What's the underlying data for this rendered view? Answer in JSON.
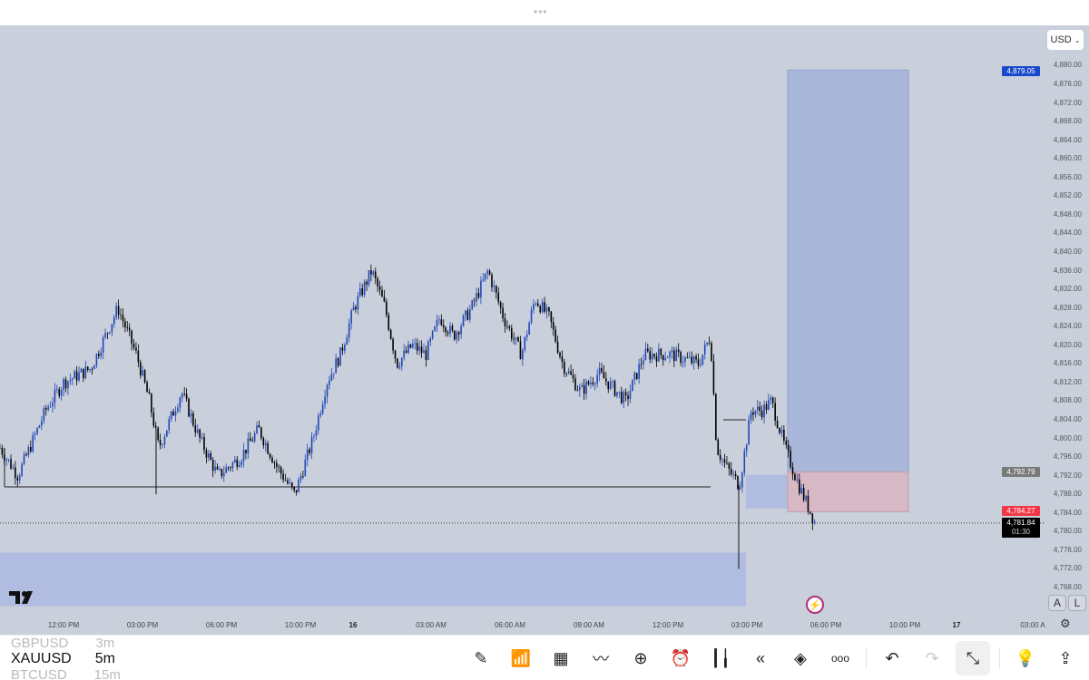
{
  "top": {
    "handle": "•••",
    "currency": "USD"
  },
  "symbols": [
    {
      "name": "GBPUSD",
      "interval": "3m"
    },
    {
      "name": "XAUUSD",
      "interval": "5m"
    },
    {
      "name": "BTCUSD",
      "interval": "15m"
    }
  ],
  "price_axis": [
    "4,880.00",
    "4,876.00",
    "4,872.00",
    "4,868.00",
    "4,864.00",
    "4,860.00",
    "4,856.00",
    "4,852.00",
    "4,848.00",
    "4,844.00",
    "4,840.00",
    "4,836.00",
    "4,832.00",
    "4,828.00",
    "4,824.00",
    "4,820.00",
    "4,816.00",
    "4,812.00",
    "4,808.00",
    "4,804.00",
    "4,800.00",
    "4,796.00",
    "4,792.00",
    "4,788.00",
    "4,784.00",
    "4,780.00",
    "4,776.00",
    "4,772.00",
    "4,768.00"
  ],
  "time_axis": [
    {
      "label": "12:00 PM",
      "t": "15 12:00"
    },
    {
      "label": "03:00 PM",
      "t": "15 15:00"
    },
    {
      "label": "06:00 PM",
      "t": "15 18:00"
    },
    {
      "label": "10:00 PM",
      "t": "15 22:00"
    },
    {
      "label": "16",
      "t": "16 00:00",
      "bold": true
    },
    {
      "label": "03:00 AM",
      "t": "16 03:00"
    },
    {
      "label": "06:00 AM",
      "t": "16 06:00"
    },
    {
      "label": "09:00 AM",
      "t": "16 09:00"
    },
    {
      "label": "12:00 PM",
      "t": "16 12:00"
    },
    {
      "label": "03:00 PM",
      "t": "16 15:00"
    },
    {
      "label": "06:00 PM",
      "t": "16 18:00"
    },
    {
      "label": "10:00 PM",
      "t": "16 22:00"
    },
    {
      "label": "17",
      "t": "17 00:00",
      "bold": true
    },
    {
      "label": "03:00 A",
      "t": "17 03:00"
    }
  ],
  "tags": {
    "target": "4,879.05",
    "entry": "4,792.79",
    "stop": "4,784.27",
    "last": "4,781.84",
    "countdown": "01:30"
  },
  "colors": {
    "up": "#1f47b8",
    "down": "#000000",
    "target_tag": "#1848cc",
    "stop_tag": "#f23645",
    "entry_tag": "#7a7a7a",
    "profit_zone": "#a9b7da",
    "loss_zone": "#d7b9c6",
    "demand_zone": "#b0bde0"
  },
  "price_path": [
    [
      "15 09:35",
      4798
    ],
    [
      "15 10:16",
      4792
    ],
    [
      "15 11:19",
      4806
    ],
    [
      "15 12:00",
      4812
    ],
    [
      "15 13:02",
      4815
    ],
    [
      "15 14:04",
      4828
    ],
    [
      "15 14:46",
      4818
    ],
    [
      "15 15:16",
      4808
    ],
    [
      "15 15:37",
      4798
    ],
    [
      "15 16:29",
      4810
    ],
    [
      "15 17:10",
      4800
    ],
    [
      "15 17:52",
      4792
    ],
    [
      "15 18:58",
      4796
    ],
    [
      "15 19:53",
      4802
    ],
    [
      "15 20:48",
      4794
    ],
    [
      "15 21:43",
      4788
    ],
    [
      "15 22:29",
      4800
    ],
    [
      "15 23:00",
      4812
    ],
    [
      "15 23:31",
      4818
    ],
    [
      "16 00:02",
      4828
    ],
    [
      "16 00:43",
      4836
    ],
    [
      "16 01:14",
      4828
    ],
    [
      "16 01:41",
      4816
    ],
    [
      "16 02:17",
      4820
    ],
    [
      "16 02:48",
      4818
    ],
    [
      "16 03:20",
      4826
    ],
    [
      "16 03:51",
      4822
    ],
    [
      "16 04:32",
      4828
    ],
    [
      "16 05:10",
      4836
    ],
    [
      "16 05:45",
      4826
    ],
    [
      "16 06:26",
      4818
    ],
    [
      "16 06:57",
      4830
    ],
    [
      "16 07:29",
      4826
    ],
    [
      "16 08:00",
      4816
    ],
    [
      "16 08:41",
      4810
    ],
    [
      "16 09:22",
      4814
    ],
    [
      "16 10:24",
      4808
    ],
    [
      "16 11:06",
      4818
    ],
    [
      "16 12:08",
      4818
    ],
    [
      "16 13:10",
      4816
    ],
    [
      "16 13:37",
      4822
    ],
    [
      "16 13:51",
      4798
    ],
    [
      "16 14:12",
      4794
    ],
    [
      "16 14:43",
      4790
    ],
    [
      "16 15:10",
      4806
    ],
    [
      "16 15:35",
      4806
    ],
    [
      "16 15:56",
      4808
    ],
    [
      "16 16:27",
      4798
    ],
    [
      "16 16:58",
      4790
    ],
    [
      "16 17:35",
      4782
    ]
  ],
  "overlay": {
    "support_level": 4789.6,
    "demand_zone": [
      4764,
      4775.5
    ],
    "long_position": {
      "target": 4879.05,
      "entry": 4792.79,
      "stop": 4784.27
    }
  },
  "toolbar": [
    "drawing-tools",
    "indicators",
    "layouts",
    "compare",
    "add",
    "alert",
    "chart-type",
    "replay",
    "objects",
    "more",
    "undo",
    "redo",
    "exit-fullscreen",
    "ideas",
    "share"
  ]
}
